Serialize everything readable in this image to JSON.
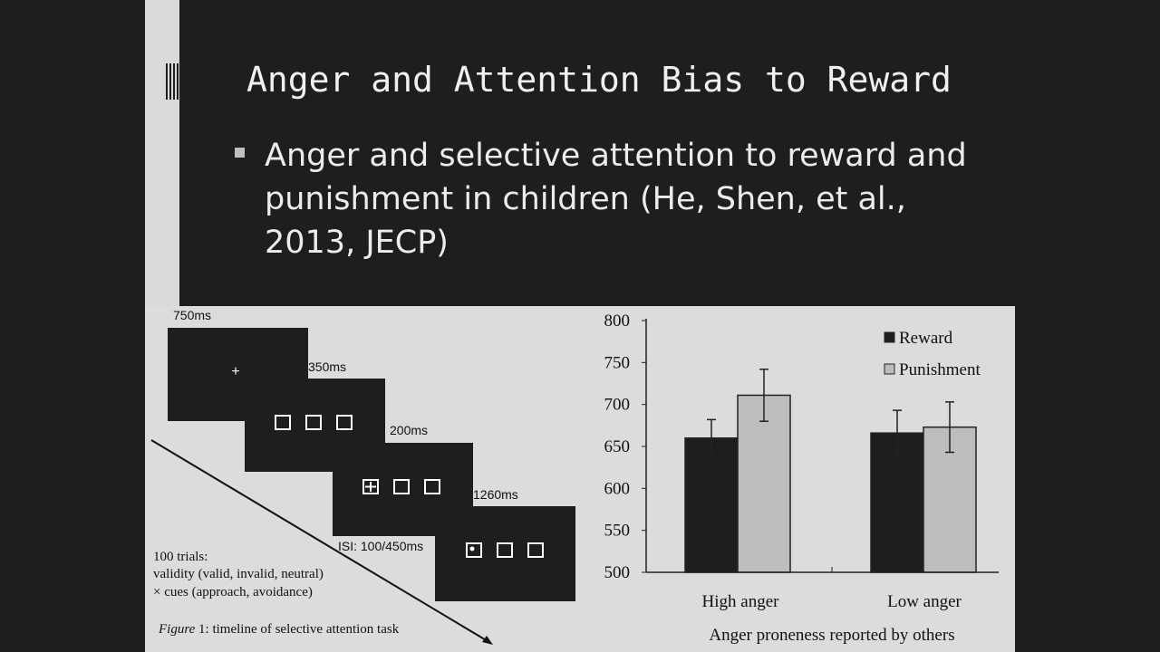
{
  "slide": {
    "title": "Anger and Attention Bias to Reward",
    "bullet": "Anger and selective attention to reward and punishment in children (He, Shen, et al., 2013, JECP)"
  },
  "timeline": {
    "durations": [
      "750ms",
      "350ms",
      "200ms",
      "1260ms"
    ],
    "isi_label": "ISI: 100/450ms",
    "info_lines": [
      "100 trials:",
      "validity (valid, invalid, neutral)",
      "× cues (approach, avoidance)"
    ],
    "caption_italic": "Figure",
    "caption_rest": " 1: timeline of selective attention task"
  },
  "chart_data": {
    "type": "bar",
    "categories": [
      "High anger",
      "Low anger"
    ],
    "series": [
      {
        "name": "Reward",
        "values": [
          660,
          666
        ],
        "error": [
          22,
          27
        ],
        "color": "#1e1e1e"
      },
      {
        "name": "Punishment",
        "values": [
          711,
          673
        ],
        "error": [
          31,
          30
        ],
        "color": "#bdbdbd"
      }
    ],
    "ylim": [
      500,
      800
    ],
    "yticks": [
      "800",
      "750",
      "700",
      "650",
      "600",
      "550",
      "500"
    ],
    "xlabel": "Anger proneness reported by others",
    "ylabel": "",
    "legend_position": "top-right",
    "grid": false
  }
}
